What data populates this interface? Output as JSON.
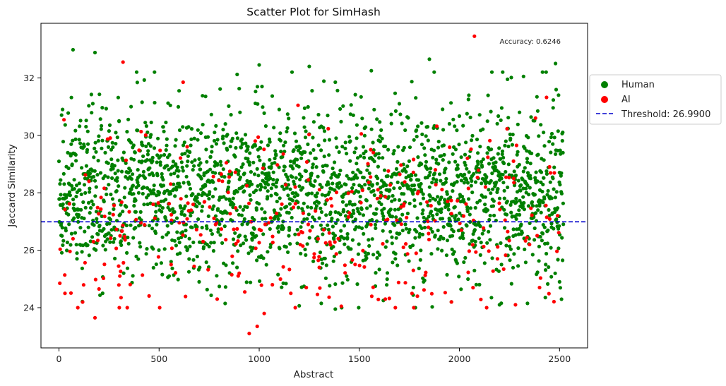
{
  "chart_data": {
    "type": "scatter",
    "title": "Scatter Plot for SimHash",
    "xlabel": "Abstract",
    "ylabel": "Jaccard Similarity",
    "xlim": [
      -90,
      2640
    ],
    "ylim": [
      22.6,
      33.9
    ],
    "xticks": [
      "0",
      "500",
      "1000",
      "1500",
      "2000",
      "2500"
    ],
    "yticks": [
      "24",
      "26",
      "28",
      "30",
      "32"
    ],
    "xtick_values": [
      0,
      500,
      1000,
      1500,
      2000,
      2500
    ],
    "ytick_values": [
      24,
      26,
      28,
      30,
      32
    ],
    "grid": false,
    "legend_position": "outside-right",
    "threshold": {
      "label": "Threshold: 26.9900",
      "value": 26.99,
      "color": "#0000cc",
      "style": "dashed"
    },
    "annotation": "Accuracy: 0.6246",
    "n_points": 2520,
    "series": [
      {
        "name": "Human",
        "color": "#008000",
        "points": [
          [
            70,
            32.98
          ],
          [
            180,
            32.88
          ],
          [
            415,
            31.15
          ],
          [
            545,
            31.12
          ],
          [
            600,
            31.55
          ],
          [
            890,
            32.12
          ],
          [
            1000,
            32.45
          ],
          [
            1250,
            32.4
          ],
          [
            1380,
            31.85
          ],
          [
            1560,
            32.25
          ],
          [
            1850,
            32.65
          ],
          [
            2045,
            31.25
          ],
          [
            2240,
            31.95
          ],
          [
            2320,
            32.05
          ],
          [
            2480,
            32.5
          ],
          [
            2495,
            31.4
          ],
          [
            1310,
            24.15
          ],
          [
            1620,
            24.25
          ],
          [
            1960,
            24.2
          ],
          [
            2200,
            24.1
          ],
          [
            2340,
            24.15
          ],
          [
            2160,
            24.35
          ],
          [
            1580,
            24.75
          ],
          [
            1120,
            24.85
          ],
          [
            700,
            24.9
          ],
          [
            550,
            25.1
          ],
          [
            1380,
            23.95
          ],
          [
            2100,
            24.8
          ],
          [
            2500,
            24.9
          ],
          [
            1770,
            24.7
          ],
          [
            20,
            27.8
          ],
          [
            130,
            28.5
          ],
          [
            260,
            26.5
          ],
          [
            380,
            29.4
          ],
          [
            480,
            27.1
          ],
          [
            650,
            28.3
          ],
          [
            740,
            26.2
          ],
          [
            860,
            29.8
          ],
          [
            940,
            27.5
          ],
          [
            1060,
            28.9
          ],
          [
            1150,
            26.7
          ],
          [
            1210,
            29.2
          ],
          [
            1330,
            27.9
          ],
          [
            1440,
            26.4
          ],
          [
            1520,
            29.6
          ],
          [
            1640,
            28.1
          ],
          [
            1730,
            26.9
          ],
          [
            1810,
            29.0
          ],
          [
            1900,
            27.4
          ],
          [
            1990,
            28.6
          ],
          [
            2080,
            26.3
          ],
          [
            2150,
            29.5
          ],
          [
            2270,
            27.7
          ],
          [
            2390,
            28.4
          ],
          [
            2460,
            26.8
          ],
          [
            300,
            30.5
          ],
          [
            820,
            30.2
          ],
          [
            1470,
            30.7
          ],
          [
            1950,
            30.4
          ],
          [
            2420,
            30.1
          ],
          [
            90,
            25.9
          ],
          [
            560,
            25.6
          ],
          [
            1010,
            25.8
          ],
          [
            1680,
            25.7
          ],
          [
            2210,
            25.5
          ],
          [
            360,
            31.0
          ],
          [
            1100,
            30.9
          ],
          [
            1700,
            31.1
          ],
          [
            2300,
            30.8
          ],
          [
            640,
            26.0
          ]
        ]
      },
      {
        "name": "AI",
        "color": "#ff0000",
        "points": [
          [
            2075,
            33.45
          ],
          [
            320,
            32.55
          ],
          [
            620,
            31.85
          ],
          [
            2435,
            31.32
          ],
          [
            180,
            23.65
          ],
          [
            950,
            23.1
          ],
          [
            990,
            23.35
          ],
          [
            1025,
            23.8
          ],
          [
            30,
            24.5
          ],
          [
            200,
            24.65
          ],
          [
            790,
            24.3
          ],
          [
            1410,
            24.05
          ],
          [
            1630,
            24.3
          ],
          [
            1790,
            24.4
          ],
          [
            1960,
            24.2
          ],
          [
            2280,
            24.1
          ],
          [
            2400,
            24.7
          ],
          [
            310,
            24.35
          ],
          [
            850,
            28.55
          ],
          [
            1120,
            29.35
          ],
          [
            1245,
            28.45
          ],
          [
            1510,
            30.05
          ],
          [
            2285,
            29.65
          ],
          [
            2270,
            29.1
          ],
          [
            70,
            26.4
          ],
          [
            150,
            28.4
          ],
          [
            470,
            27.6
          ],
          [
            720,
            26.3
          ],
          [
            1030,
            26.9
          ],
          [
            1180,
            28.2
          ],
          [
            1350,
            26.6
          ],
          [
            1450,
            27.3
          ],
          [
            1590,
            27.8
          ],
          [
            1720,
            26.1
          ],
          [
            1880,
            28.8
          ],
          [
            2010,
            26.7
          ],
          [
            2130,
            28.2
          ],
          [
            2350,
            26.2
          ],
          [
            2450,
            28.9
          ],
          [
            2490,
            27.2
          ],
          [
            560,
            25.5
          ],
          [
            900,
            25.2
          ],
          [
            1300,
            25.4
          ],
          [
            1770,
            25.3
          ],
          [
            2190,
            25.7
          ],
          [
            640,
            29.6
          ],
          [
            980,
            29.8
          ],
          [
            1570,
            29.4
          ],
          [
            2040,
            29.2
          ],
          [
            2380,
            30.6
          ]
        ]
      }
    ]
  }
}
